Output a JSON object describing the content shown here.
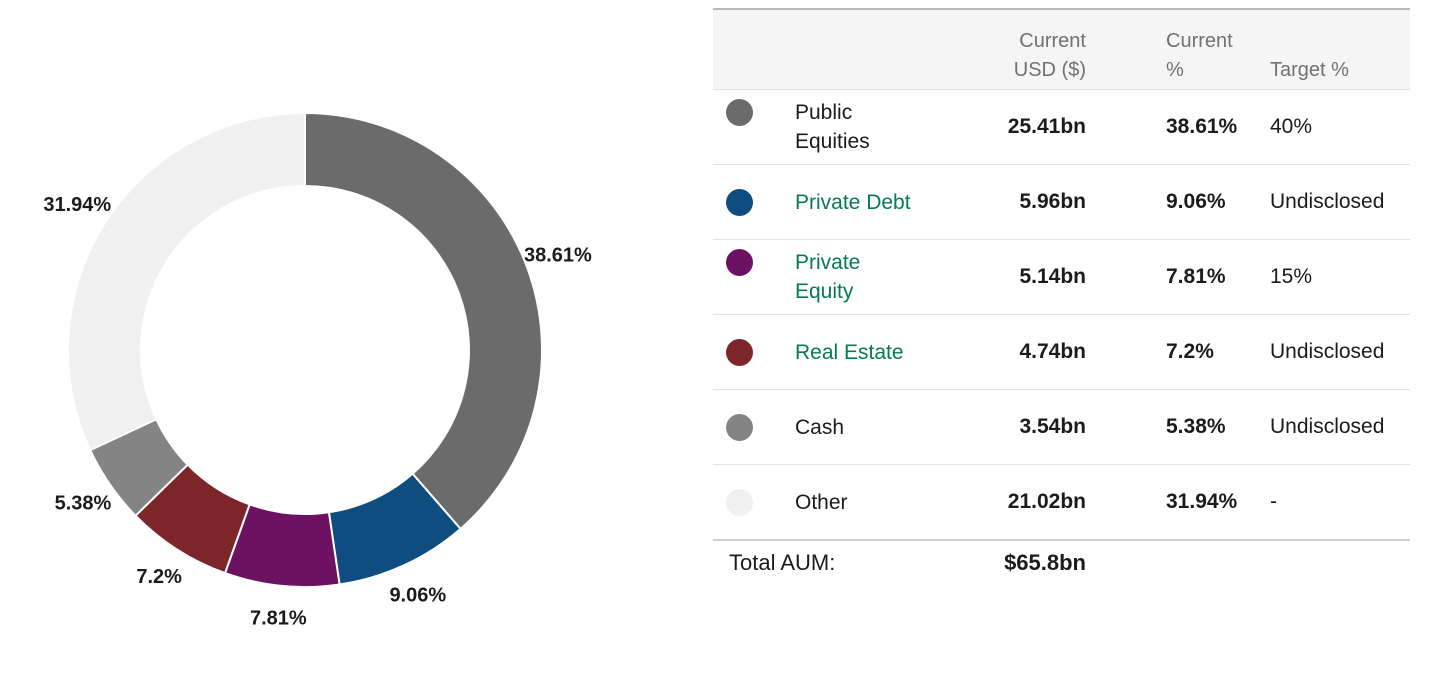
{
  "colors": {
    "link_green": "#067a54",
    "text_dark": "#1b1b1b",
    "header_gray": "#717175",
    "header_bg": "#f5f5f6"
  },
  "chart_data": {
    "type": "pie",
    "variant": "donut",
    "start_angle_deg": 0,
    "direction": "clockwise",
    "segments": [
      {
        "label": "Public Equities",
        "value": 38.61,
        "display": "38.61%",
        "color": "#6b6b6b"
      },
      {
        "label": "Private Debt",
        "value": 9.06,
        "display": "9.06%",
        "color": "#0f4d80"
      },
      {
        "label": "Private Equity",
        "value": 7.81,
        "display": "7.81%",
        "color": "#6d1262"
      },
      {
        "label": "Real Estate",
        "value": 7.2,
        "display": "7.2%",
        "color": "#7d262a"
      },
      {
        "label": "Cash",
        "value": 5.38,
        "display": "5.38%",
        "color": "#848484"
      },
      {
        "label": "Other",
        "value": 31.94,
        "display": "31.94%",
        "color": "#f0f0f1"
      }
    ]
  },
  "table": {
    "headers": {
      "usd": "Current\nUSD ($)",
      "pct": "Current\n%",
      "target": "Target %"
    },
    "rows": [
      {
        "label": "Public Equities",
        "color": "#6b6b6b",
        "usd": "25.41bn",
        "pct": "38.61%",
        "target": "40%"
      },
      {
        "label": "Private Debt",
        "color": "#0f4d80",
        "usd": "5.96bn",
        "pct": "9.06%",
        "target": "Undisclosed"
      },
      {
        "label": "Private Equity",
        "color": "#6d1262",
        "usd": "5.14bn",
        "pct": "7.81%",
        "target": "15%"
      },
      {
        "label": "Real Estate",
        "color": "#7d262a",
        "usd": "4.74bn",
        "pct": "7.2%",
        "target": "Undisclosed"
      },
      {
        "label": "Cash",
        "color": "#848484",
        "usd": "3.54bn",
        "pct": "5.38%",
        "target": "Undisclosed"
      },
      {
        "label": "Other",
        "color": "#f0f0f1",
        "usd": "21.02bn",
        "pct": "31.94%",
        "target": "-"
      }
    ],
    "total": {
      "label": "Total AUM:",
      "value": "$65.8bn"
    }
  }
}
